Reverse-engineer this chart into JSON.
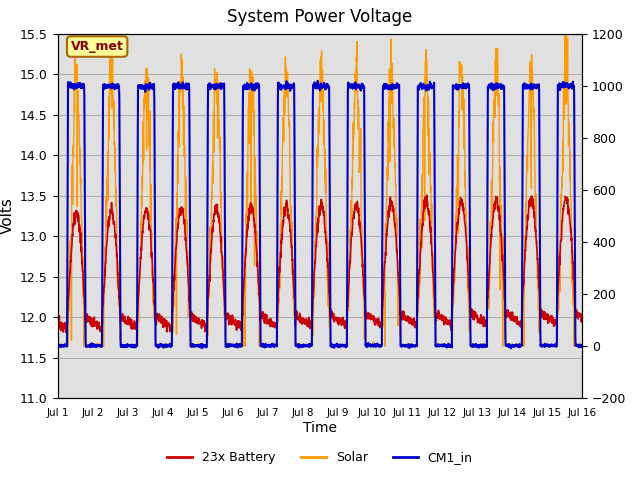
{
  "title": "System Power Voltage",
  "xlabel": "Time",
  "ylabel": "Volts",
  "ylim_left": [
    11.0,
    15.5
  ],
  "ylim_right": [
    -200,
    1200
  ],
  "yticks_left": [
    11.0,
    11.5,
    12.0,
    12.5,
    13.0,
    13.5,
    14.0,
    14.5,
    15.0,
    15.5
  ],
  "yticks_right": [
    -200,
    0,
    200,
    400,
    600,
    800,
    1000,
    1200
  ],
  "xtick_labels": [
    "Jul 1",
    "Jul 2",
    "Jul 3",
    "Jul 4",
    "Jul 5",
    "Jul 6",
    "Jul 7",
    "Jul 8",
    "Jul 9",
    "Jul 10",
    "Jul 11",
    "Jul 12",
    "Jul 13",
    "Jul 14",
    "Jul 15",
    "Jul 16"
  ],
  "n_days": 15,
  "color_battery": "#cc0000",
  "color_solar": "#ff9900",
  "color_cm1": "#0000cc",
  "color_grid": "#aaaaaa",
  "background_plot": "#e0e0e0",
  "background_fig": "#ffffff",
  "legend_labels": [
    "23x Battery",
    "Solar",
    "CM1_in"
  ],
  "annotation_text": "VR_met",
  "annotation_box_color": "#ffff99",
  "annotation_box_border": "#aa6600",
  "linewidth_battery": 1.2,
  "linewidth_solar": 1.0,
  "linewidth_cm1": 1.5,
  "day_start": 0.27,
  "day_end": 0.8,
  "cm1_night": 11.65,
  "cm1_day": 14.85,
  "solar_day_min": 500,
  "solar_day_max": 1100,
  "solar_scale_factor": 1.0
}
